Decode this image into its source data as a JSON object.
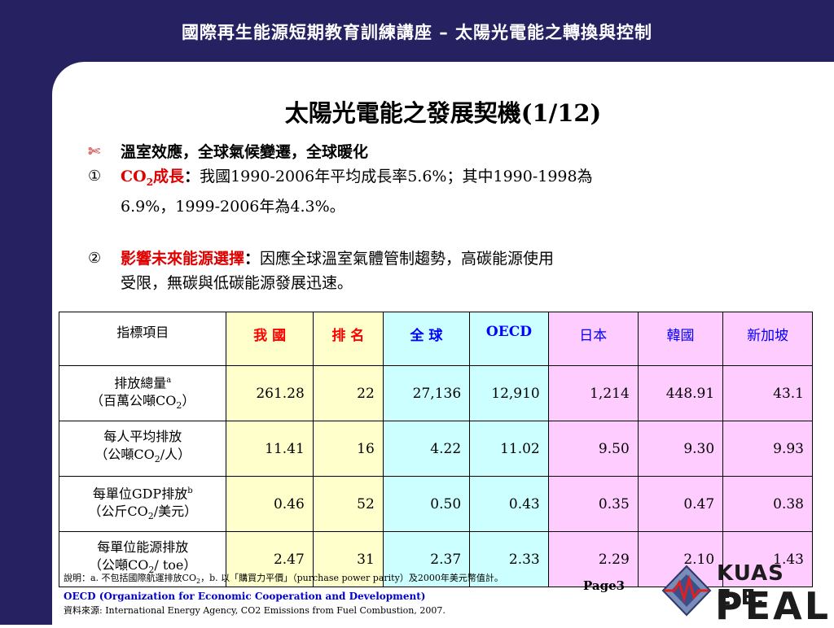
{
  "header": {
    "title": "國際再生能源短期教育訓練講座 – 太陽光電能之轉換與控制"
  },
  "slide": {
    "title": "太陽光電能之發展契機(1/12)"
  },
  "bullets": {
    "b1": {
      "mark": "✂",
      "text": "溫室效應，全球氣候變遷，全球暖化"
    },
    "b2": {
      "mark": "①",
      "head_pre": "CO",
      "head_sub": "2",
      "head_post": "成長",
      "colon": "：",
      "text1": "我國1990-2006年平均成長率5.6%；其中1990-1998為",
      "text2": "6.9%，1999-2006年為4.3%。"
    },
    "b3": {
      "mark": "②",
      "head": "影響未來能源選擇",
      "colon": "：",
      "text1": "因應全球溫室氣體管制趨勢，高碳能源使用",
      "text2": "受限，無碳與低碳能源發展迅速。"
    }
  },
  "chart_data": {
    "type": "table",
    "columns": [
      "指標項目",
      "我 國",
      "排 名",
      "全 球",
      "OECD",
      "日本",
      "韓國",
      "新加坡"
    ],
    "rows": [
      {
        "l1": "排放總量",
        "sup": "a",
        "l2pre": "（百萬公噸CO",
        "l2sub": "2",
        "l2post": "）",
        "values": [
          "261.28",
          "22",
          "27,136",
          "12,910",
          "1,214",
          "448.91",
          "43.1"
        ]
      },
      {
        "l1": "每人平均排放",
        "sup": "",
        "l2pre": "（公噸CO",
        "l2sub": "2",
        "l2post": "/人）",
        "values": [
          "11.41",
          "16",
          "4.22",
          "11.02",
          "9.50",
          "9.30",
          "9.93"
        ]
      },
      {
        "l1": "每單位GDP排放",
        "sup": "b",
        "l2pre": "（公斤CO",
        "l2sub": "2",
        "l2post": "/美元）",
        "values": [
          "0.46",
          "52",
          "0.50",
          "0.43",
          "0.35",
          "0.47",
          "0.38"
        ]
      },
      {
        "l1": "每單位能源排放",
        "sup": "",
        "l2pre": "（公噸CO",
        "l2sub": "2",
        "l2post": "/ toe）",
        "values": [
          "2.47",
          "31",
          "2.37",
          "2.33",
          "2.29",
          "2.10",
          "1.43"
        ]
      }
    ]
  },
  "notes": {
    "n1_pre": "說明：a. 不包括國際航運排放CO",
    "n1_sub": "2",
    "n1_post": "，b. 以「購買力平價」（purchase power parity）及2000年美元幣值計。",
    "n2": "OECD (Organization for Economic Cooperation and Development)",
    "n3": "資料來源: International Energy Agency, CO2 Emissions from Fuel Combustion, 2007."
  },
  "page": {
    "label": "Page3"
  },
  "logo": {
    "top": "KUAS E.E.",
    "bottom": "PEAL"
  },
  "colors": {
    "frame": "#262262",
    "yellow": "#ffffcc",
    "cyan": "#ccffff",
    "pink": "#ffccff",
    "red": "#ff0000",
    "blue": "#0000ff"
  }
}
